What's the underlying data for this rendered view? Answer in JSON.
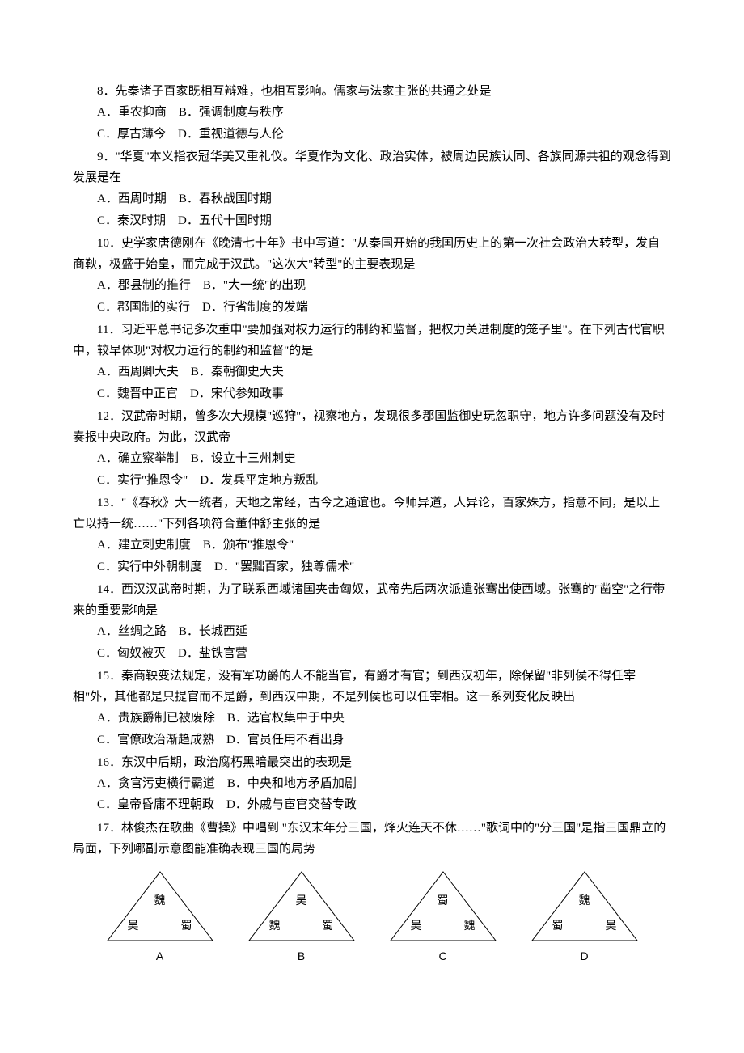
{
  "questions": [
    {
      "num": "8",
      "text": "先秦诸子百家既相互辩难，也相互影响。儒家与法家主张的共通之处是",
      "options_lines": [
        "A．重农抑商　B．强调制度与秩序",
        "C．厚古薄今　D．重视道德与人伦"
      ]
    },
    {
      "num": "9",
      "text": "\"华夏\"本义指衣冠华美又重礼仪。华夏作为文化、政治实体，被周边民族认同、各族同源共祖的观念得到发展是在",
      "options_lines": [
        "A．西周时期　B．春秋战国时期",
        "C．秦汉时期　D．五代十国时期"
      ]
    },
    {
      "num": "10",
      "text": "史学家唐德刚在《晚清七十年》书中写道：\"从秦国开始的我国历史上的第一次社会政治大转型，发自商鞅，极盛于始皇，而完成于汉武。\"这次大\"转型\"的主要表现是",
      "options_lines": [
        "A．郡县制的推行　B．\"大一统\"的出现",
        "C．郡国制的实行　D．行省制度的发端"
      ]
    },
    {
      "num": "11",
      "text": "习近平总书记多次重申\"要加强对权力运行的制约和监督，把权力关进制度的笼子里\"。在下列古代官职中，较早体现\"对权力运行的制约和监督\"的是",
      "options_lines": [
        "A．西周卿大夫　B．秦朝御史大夫",
        "C．魏晋中正官　D．宋代参知政事"
      ]
    },
    {
      "num": "12",
      "text": "汉武帝时期，曾多次大规模\"巡狩\"，视察地方，发现很多郡国监御史玩忽职守，地方许多问题没有及时奏报中央政府。为此，汉武帝",
      "options_lines": [
        "A．确立察举制　B．设立十三州刺史",
        "C．实行\"推恩令\"　D．发兵平定地方叛乱"
      ]
    },
    {
      "num": "13",
      "text": "\"《春秋》大一统者，天地之常经，古今之通谊也。今师异道，人异论，百家殊方，指意不同，是以上亡以持一统……\"下列各项符合董仲舒主张的是",
      "options_lines": [
        "A．建立刺史制度　B．颁布\"推恩令\"",
        "C．实行中外朝制度　D．\"罢黜百家，独尊儒术\""
      ]
    },
    {
      "num": "14",
      "text": "西汉汉武帝时期，为了联系西域诸国夹击匈奴，武帝先后两次派遣张骞出使西域。张骞的\"凿空\"之行带来的重要影响是",
      "options_lines": [
        "A．丝绸之路　B．长城西延",
        "C．匈奴被灭　D．盐铁官营"
      ]
    },
    {
      "num": "15",
      "text": "秦商鞅变法规定，没有军功爵的人不能当官，有爵才有官；到西汉初年，除保留\"非列侯不得任宰相\"外，其他都是只提官而不是爵，到西汉中期，不是列侯也可以任宰相。这一系列变化反映出",
      "options_lines": [
        "A．贵族爵制已被废除　B．选官权集中于中央",
        "C．官僚政治渐趋成熟　D．官员任用不看出身"
      ]
    },
    {
      "num": "16",
      "text": "东汉中后期，政治腐朽黑暗最突出的表现是",
      "options_lines": [
        "A．贪官污吏横行霸道　B．中央和地方矛盾加剧",
        "C．皇帝昏庸不理朝政　D．外戚与宦官交替专政"
      ]
    },
    {
      "num": "17",
      "text": "林俊杰在歌曲《曹操》中唱到 \"东汉末年分三国，烽火连天不休……\"歌词中的\"分三国\"是指三国鼎立的局面，下列哪副示意图能准确表现三国的局势",
      "options_lines": []
    }
  ],
  "diagrams": [
    {
      "label": "A",
      "apex": "魏",
      "left": "吴",
      "right": "蜀"
    },
    {
      "label": "B",
      "apex": "吴",
      "left": "魏",
      "right": "蜀"
    },
    {
      "label": "C",
      "apex": "蜀",
      "left": "吴",
      "right": "魏"
    },
    {
      "label": "D",
      "apex": "魏",
      "left": "蜀",
      "right": "吴"
    }
  ],
  "style": {
    "font_size": 15,
    "line_height": 1.75,
    "text_color": "#000000",
    "background": "#ffffff",
    "triangle_stroke": "#000000",
    "triangle_stroke_width": 1
  }
}
